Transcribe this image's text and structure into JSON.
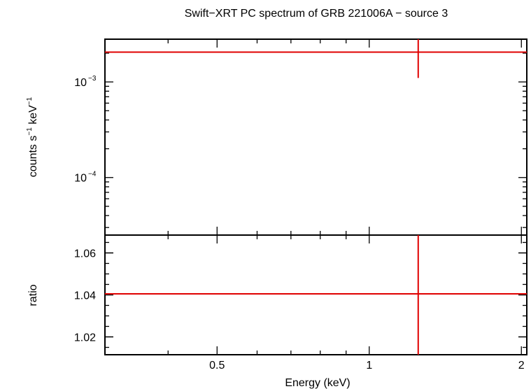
{
  "colors": {
    "data": "#e00000",
    "axes": "#000000",
    "background": "#ffffff"
  },
  "chart_data": [
    {
      "type": "scatter",
      "panel": "spectrum",
      "title": "Swift−XRT PC spectrum of GRB 221006A − source 3",
      "ylabel_main": "counts s",
      "ylabel_sup1": "−1",
      "ylabel_mid": " keV",
      "ylabel_sup2": "−1",
      "yscale": "log",
      "xscale": "log",
      "xlim": [
        0.3,
        2.05
      ],
      "ylim": [
        2.5e-05,
        0.0028
      ],
      "y_ticks": [
        {
          "value": 0.001,
          "base": "10",
          "exp": "−3"
        },
        {
          "value": 0.0001,
          "base": "10",
          "exp": "−4"
        }
      ],
      "points": [
        {
          "x": 1.25,
          "y": 0.00205,
          "xerr": [
            0.3,
            2.05
          ],
          "yerr": [
            0.0011,
            0.0028
          ]
        }
      ]
    },
    {
      "type": "scatter",
      "panel": "ratio",
      "ylabel": "ratio",
      "xlabel": "Energy (keV)",
      "xscale": "log",
      "yscale": "linear",
      "xlim": [
        0.3,
        2.05
      ],
      "ylim": [
        1.0115,
        1.0685
      ],
      "x_ticks": [
        {
          "value": 0.5,
          "label": "0.5"
        },
        {
          "value": 1,
          "label": "1"
        },
        {
          "value": 2,
          "label": "2"
        }
      ],
      "y_ticks": [
        {
          "value": 1.02,
          "label": "1.02"
        },
        {
          "value": 1.04,
          "label": "1.04"
        },
        {
          "value": 1.06,
          "label": "1.06"
        }
      ],
      "points": [
        {
          "x": 1.25,
          "y": 1.0405,
          "xerr": [
            0.3,
            2.05
          ],
          "yerr": [
            1.0115,
            1.0685
          ]
        }
      ]
    }
  ]
}
